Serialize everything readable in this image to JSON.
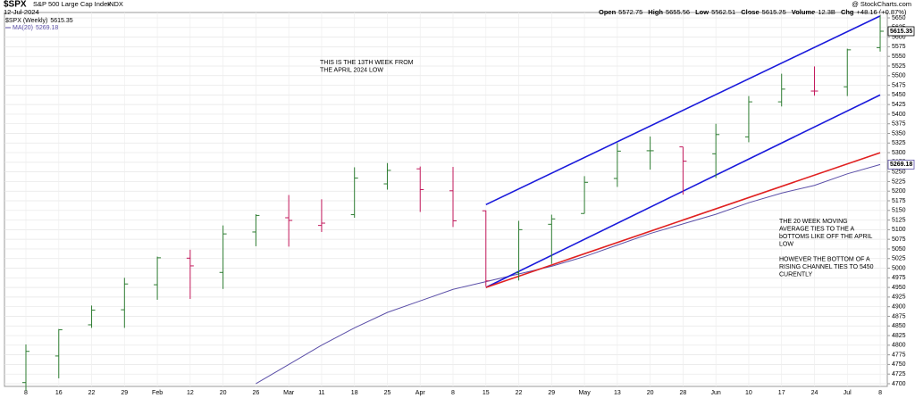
{
  "chart_data": {
    "type": "ohlc",
    "symbol": "$SPX",
    "title": "S&P 500 Large Cap Index",
    "exchange": "INDX",
    "date": "12-Jul-2024",
    "credit": "@ StockCharts.com",
    "quote": [
      {
        "label": "Open",
        "value": "5572.75"
      },
      {
        "label": "High",
        "value": "5655.56"
      },
      {
        "label": "Low",
        "value": "5562.51"
      },
      {
        "label": "Close",
        "value": "5615.35"
      },
      {
        "label": "Volume",
        "value": "12.3B"
      },
      {
        "label": "Chg",
        "value": "+48.16 (+0.87%)"
      }
    ],
    "categories": [
      "8",
      "16",
      "22",
      "29",
      "Feb",
      "12",
      "20",
      "26",
      "Mar",
      "11",
      "18",
      "25",
      "Apr",
      "8",
      "15",
      "22",
      "29",
      "May",
      "13",
      "20",
      "28",
      "Jun",
      "10",
      "17",
      "24",
      "Jul",
      "8"
    ],
    "ohlc": {
      "name": "$SPX (Weekly)",
      "last": 5615.35,
      "up_color": "#2e7d32",
      "down_color": "#c2185b",
      "open": [
        4703,
        4772,
        4853,
        4892,
        4957,
        5026,
        4989,
        5094,
        5131,
        5111,
        5139,
        5219,
        5258,
        5201,
        5149,
        4988,
        5114,
        5142,
        5233,
        5305,
        5315,
        5297,
        5341,
        5432,
        5460,
        5471,
        5572.75
      ],
      "high": [
        4802,
        4842,
        4903,
        4975,
        5030,
        5048,
        5111,
        5140,
        5190,
        5179,
        5262,
        5273,
        5264,
        5263,
        5150,
        5123,
        5139,
        5239,
        5325,
        5342,
        5315,
        5375,
        5447,
        5505,
        5524,
        5570,
        5655.56
      ],
      "low": [
        4682,
        4714,
        4845,
        4845,
        4918,
        4920,
        4946,
        5057,
        5056,
        5094,
        5131,
        5204,
        5146,
        5107,
        4953,
        4968,
        5011,
        5142,
        5211,
        5256,
        5191,
        5234,
        5327,
        5420,
        5448,
        5447,
        5562.51
      ],
      "close": [
        4784,
        4840,
        4891,
        4959,
        5027,
        5006,
        5089,
        5137,
        5124,
        5117,
        5234,
        5254,
        5204,
        5123,
        4967,
        5100,
        5128,
        5223,
        5304,
        5305,
        5278,
        5347,
        5432,
        5465,
        5460,
        5567,
        5615.35
      ]
    },
    "ma": {
      "name": "MA(20)",
      "last": 5269.18,
      "color": "#5b4fa8",
      "values": [
        null,
        null,
        null,
        null,
        null,
        null,
        null,
        4700,
        4750,
        4800,
        4845,
        4885,
        4915,
        4945,
        4965,
        4985,
        5005,
        5030,
        5060,
        5090,
        5115,
        5140,
        5170,
        5195,
        5215,
        5245,
        5269.18
      ]
    },
    "trendlines": [
      {
        "color": "#1a1adb",
        "x": [
          14,
          26
        ],
        "y": [
          5165,
          5655
        ]
      },
      {
        "color": "#1a1adb",
        "x": [
          14,
          26
        ],
        "y": [
          4950,
          5450
        ]
      },
      {
        "color": "#e02020",
        "x": [
          14,
          26
        ],
        "y": [
          4950,
          5300
        ]
      }
    ],
    "annotations": [
      {
        "color": "#000000",
        "lines": [
          "THIS IS THE 13TH WEEK FROM",
          "THE APRIL 2024 LOW"
        ]
      },
      {
        "color": "#e02020",
        "lines": [
          "THE 20 WEEK MOVING",
          "AVERAGE TIES TO THE A",
          "bOTTOMS LIKE OFF THE APRIL",
          "LOW",
          "",
          "HOWEVER THE BOTTOM OF A",
          "RISING CHANNEL TIES TO 5450",
          "CURENTLY"
        ]
      }
    ],
    "ylim": [
      4693,
      5664
    ],
    "yticks": [
      4700,
      4725,
      4750,
      4775,
      4800,
      4825,
      4850,
      4875,
      4900,
      4925,
      4950,
      4975,
      5000,
      5025,
      5050,
      5075,
      5100,
      5125,
      5150,
      5175,
      5200,
      5225,
      5250,
      5275,
      5300,
      5325,
      5350,
      5375,
      5400,
      5425,
      5450,
      5475,
      5500,
      5525,
      5550,
      5575,
      5600,
      5625,
      5650
    ],
    "grid": true
  }
}
